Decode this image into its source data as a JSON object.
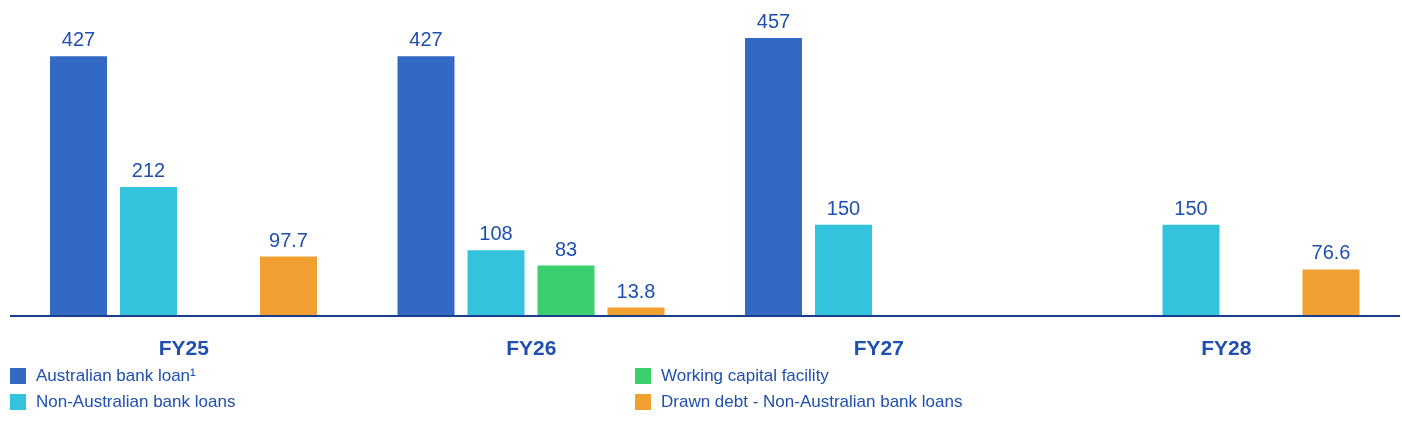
{
  "chart_data": {
    "type": "bar",
    "categories": [
      "FY25",
      "FY26",
      "FY27",
      "FY28"
    ],
    "series": [
      {
        "name": "Australian bank loan¹",
        "color": "#3369c4",
        "values": [
          427,
          427,
          457,
          null
        ]
      },
      {
        "name": "Non-Australian bank loans",
        "color": "#33c3dc",
        "values": [
          212,
          108,
          150,
          150
        ]
      },
      {
        "name": "Working capital facility",
        "color": "#3ccf6e",
        "values": [
          null,
          83,
          null,
          null
        ]
      },
      {
        "name": "Drawn debt - Non-Australian bank loans",
        "color": "#f0a030",
        "values": [
          97.7,
          13.8,
          null,
          76.6
        ]
      }
    ],
    "data_labels": true,
    "legend": "bottom",
    "grid": false
  }
}
